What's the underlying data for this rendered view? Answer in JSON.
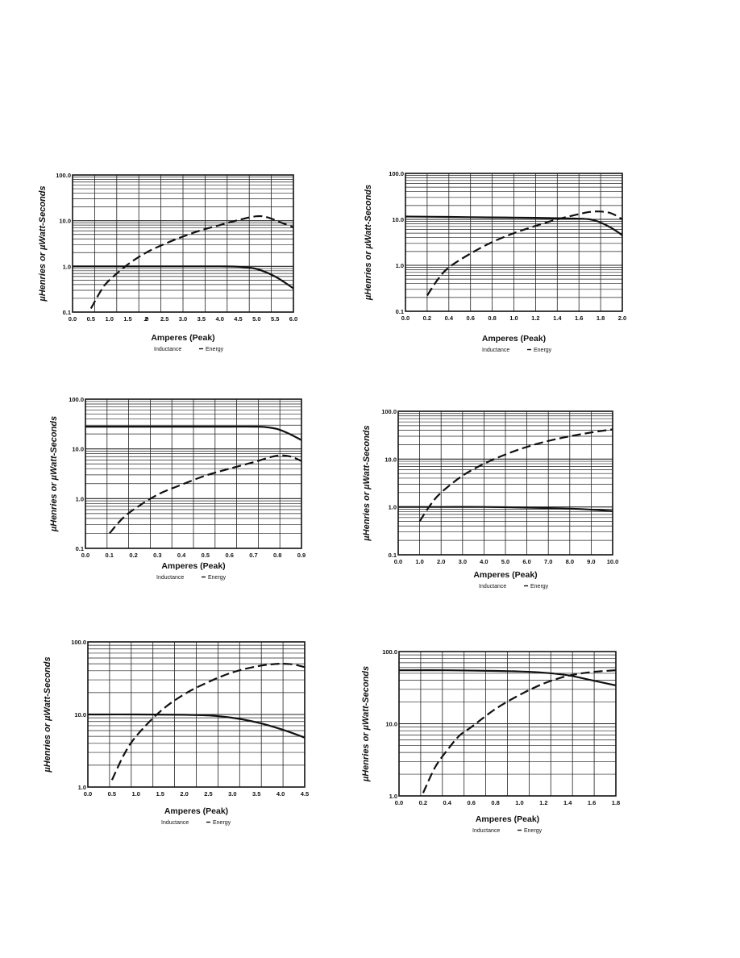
{
  "chart_data": [
    {
      "type": "line",
      "ylabel": "µHenries or  µWatt-Seconds",
      "xlabel": "Amperes (Peak)",
      "y_scale": "log",
      "ylim": [
        0.1,
        100
      ],
      "xlim": [
        0,
        6
      ],
      "x_ticks": [
        "0.0",
        "0.5",
        "1.0",
        "1.5",
        "2",
        ".0",
        "2.5",
        "3.0",
        "3.5",
        "4.0",
        "4.5",
        "5.0",
        "5.5",
        "6.0"
      ],
      "x_tick_values": [
        0,
        0.5,
        1.0,
        1.5,
        2.0,
        2.0,
        2.5,
        3.0,
        3.5,
        4.0,
        4.5,
        5.0,
        5.5,
        6.0
      ],
      "y_ticks": [
        "0.1",
        "1.0",
        "10.0",
        "100.0"
      ],
      "y_tick_values": [
        0.1,
        1,
        10,
        100
      ],
      "legend": [
        "Inductance",
        "Energy"
      ],
      "series": [
        {
          "name": "Inductance",
          "style": "solid",
          "x": [
            0,
            1.0,
            2.0,
            3.0,
            4.0,
            4.5,
            5.0,
            5.5,
            6.0
          ],
          "y": [
            1.0,
            1.0,
            1.0,
            1.0,
            1.0,
            0.98,
            0.88,
            0.6,
            0.33
          ]
        },
        {
          "name": "Energy",
          "style": "dashed",
          "x": [
            0.5,
            0.8,
            1.0,
            1.5,
            2.0,
            2.5,
            3.0,
            3.5,
            4.0,
            4.5,
            5.0,
            5.3,
            5.6,
            6.0
          ],
          "y": [
            0.12,
            0.32,
            0.5,
            1.1,
            2.0,
            3.1,
            4.5,
            6.2,
            8.0,
            10.3,
            12.5,
            11.8,
            9.5,
            7.2
          ]
        }
      ]
    },
    {
      "type": "line",
      "ylabel": "µHenries or  µWatt-Seconds",
      "xlabel": "Amperes (Peak)",
      "y_scale": "log",
      "ylim": [
        0.1,
        100
      ],
      "xlim": [
        0,
        2
      ],
      "x_ticks": [
        "0.0",
        "0.2",
        "0.4",
        "0.6",
        "0.8",
        "1.0",
        "1.2",
        "1.4",
        "1.6",
        "1.8",
        "2.0"
      ],
      "x_tick_values": [
        0,
        0.2,
        0.4,
        0.6,
        0.8,
        1.0,
        1.2,
        1.4,
        1.6,
        1.8,
        2.0
      ],
      "y_ticks": [
        "0.1",
        "1.0",
        "10.0",
        "100.0"
      ],
      "y_tick_values": [
        0.1,
        1,
        10,
        100
      ],
      "legend": [
        "Inductance",
        "Energy"
      ],
      "series": [
        {
          "name": "Inductance",
          "style": "solid",
          "x": [
            0,
            0.4,
            0.8,
            1.2,
            1.5,
            1.7,
            1.8,
            1.9,
            2.0
          ],
          "y": [
            11.5,
            11.3,
            11.0,
            10.8,
            10.5,
            10.0,
            8.5,
            6.5,
            4.5
          ]
        },
        {
          "name": "Energy",
          "style": "dashed",
          "x": [
            0.2,
            0.3,
            0.4,
            0.6,
            0.8,
            1.0,
            1.2,
            1.4,
            1.6,
            1.7,
            1.8,
            1.9,
            2.0
          ],
          "y": [
            0.22,
            0.5,
            0.9,
            1.8,
            3.2,
            5.0,
            7.2,
            10.0,
            13.0,
            14.5,
            14.8,
            13.5,
            10.0
          ]
        }
      ]
    },
    {
      "type": "line",
      "ylabel": "µHenries or  µWatt-Seconds",
      "xlabel": "Amperes (Peak)",
      "y_scale": "log",
      "ylim": [
        0.1,
        100
      ],
      "xlim": [
        0,
        0.9
      ],
      "x_ticks": [
        "0.0",
        "0.1",
        "0.2",
        "0.3",
        "0.4",
        "0.5",
        "0.6",
        "0.7",
        "0.8",
        "0.9"
      ],
      "x_tick_values": [
        0,
        0.1,
        0.2,
        0.3,
        0.4,
        0.5,
        0.6,
        0.7,
        0.8,
        0.9
      ],
      "y_ticks": [
        "0.1",
        "1.0",
        "10.0",
        "100.0"
      ],
      "y_tick_values": [
        0.1,
        1,
        10,
        100
      ],
      "legend": [
        "Inductance",
        "Energy"
      ],
      "series": [
        {
          "name": "Inductance",
          "style": "solid",
          "x": [
            0,
            0.2,
            0.4,
            0.6,
            0.7,
            0.75,
            0.8,
            0.85,
            0.9
          ],
          "y": [
            28,
            28,
            28,
            28,
            28,
            27.5,
            25,
            20,
            15
          ]
        },
        {
          "name": "Energy",
          "style": "dashed",
          "x": [
            0.1,
            0.15,
            0.2,
            0.3,
            0.4,
            0.5,
            0.6,
            0.7,
            0.78,
            0.82,
            0.86,
            0.9
          ],
          "y": [
            0.2,
            0.38,
            0.6,
            1.2,
            1.9,
            2.9,
            4.0,
            5.4,
            7.0,
            7.4,
            6.9,
            5.7
          ]
        }
      ]
    },
    {
      "type": "line",
      "ylabel": "µHenries or  µWatt-Seconds",
      "xlabel": "Amperes (Peak)",
      "y_scale": "log",
      "ylim": [
        0.1,
        100
      ],
      "xlim": [
        0,
        10
      ],
      "x_ticks": [
        "0.0",
        "1.0",
        "2.0",
        "3.0",
        "4.0",
        "5.0",
        "6.0",
        "7.0",
        "8.0",
        "9.0",
        "10.0"
      ],
      "x_tick_values": [
        0,
        1,
        2,
        3,
        4,
        5,
        6,
        7,
        8,
        9,
        10
      ],
      "y_ticks": [
        "0.1",
        "1.0",
        "10.0",
        "100.0"
      ],
      "y_tick_values": [
        0.1,
        1,
        10,
        100
      ],
      "legend": [
        "Inductance",
        "Energy"
      ],
      "series": [
        {
          "name": "Inductance",
          "style": "solid",
          "x": [
            0,
            2,
            4,
            6,
            8,
            9,
            10
          ],
          "y": [
            1.0,
            1.0,
            1.0,
            0.97,
            0.92,
            0.88,
            0.82
          ]
        },
        {
          "name": "Energy",
          "style": "dashed",
          "x": [
            1.0,
            1.5,
            2.0,
            3.0,
            4.0,
            5.0,
            6.0,
            7.0,
            8.0,
            9.0,
            10.0
          ],
          "y": [
            0.5,
            1.1,
            2.0,
            4.5,
            8.0,
            12.5,
            18.0,
            24.0,
            30.0,
            36.0,
            42.0
          ]
        }
      ]
    },
    {
      "type": "line",
      "ylabel": "µHenries or  µWatt-Seconds",
      "xlabel": "Amperes (Peak)",
      "y_scale": "log",
      "ylim": [
        1,
        100
      ],
      "xlim": [
        0,
        4.5
      ],
      "x_ticks": [
        "0.0",
        "0.5",
        "1.0",
        "1.5",
        "2.0",
        "2.5",
        "3.0",
        "3.5",
        "4.0",
        "4.5"
      ],
      "x_tick_values": [
        0,
        0.5,
        1.0,
        1.5,
        2.0,
        2.5,
        3.0,
        3.5,
        4.0,
        4.5
      ],
      "y_ticks": [
        "1.0",
        "10.0",
        "100.0"
      ],
      "y_tick_values": [
        1,
        10,
        100
      ],
      "legend": [
        "Inductance",
        "Energy"
      ],
      "series": [
        {
          "name": "Inductance",
          "style": "solid",
          "x": [
            0,
            1.0,
            2.0,
            2.5,
            3.0,
            3.5,
            4.0,
            4.5
          ],
          "y": [
            10.0,
            10.0,
            9.9,
            9.7,
            9.0,
            7.8,
            6.3,
            4.8
          ]
        },
        {
          "name": "Energy",
          "style": "dashed",
          "x": [
            0.5,
            0.75,
            1.0,
            1.5,
            2.0,
            2.5,
            3.0,
            3.5,
            3.8,
            4.0,
            4.25,
            4.5
          ],
          "y": [
            1.25,
            2.8,
            5.0,
            11.0,
            19.0,
            28.0,
            38.0,
            46.0,
            49.0,
            50.0,
            49.0,
            45.0
          ]
        }
      ]
    },
    {
      "type": "line",
      "ylabel": "µHenries or  µWatt-Seconds",
      "xlabel": "Amperes (Peak)",
      "y_scale": "log",
      "ylim": [
        1,
        100
      ],
      "xlim": [
        0,
        1.8
      ],
      "x_ticks": [
        "0.0",
        "0.2",
        "0.4",
        "0.6",
        "0.8",
        "1.0",
        "1.2",
        "1.4",
        "1.6",
        "1.8"
      ],
      "x_tick_values": [
        0,
        0.2,
        0.4,
        0.6,
        0.8,
        1.0,
        1.2,
        1.4,
        1.6,
        1.8
      ],
      "y_ticks": [
        "1.0",
        "10.0",
        "100.0"
      ],
      "y_tick_values": [
        1,
        10,
        100
      ],
      "legend": [
        "Inductance",
        "Energy"
      ],
      "series": [
        {
          "name": "Inductance",
          "style": "solid",
          "x": [
            0,
            0.4,
            0.8,
            1.0,
            1.2,
            1.4,
            1.6,
            1.8
          ],
          "y": [
            55,
            55,
            54,
            53,
            51,
            47,
            40,
            34
          ]
        },
        {
          "name": "Energy",
          "style": "dashed",
          "x": [
            0.2,
            0.3,
            0.4,
            0.5,
            0.6,
            0.8,
            1.0,
            1.2,
            1.4,
            1.6,
            1.8
          ],
          "y": [
            1.1,
            2.5,
            4.3,
            6.8,
            9.0,
            16.0,
            25.0,
            36.0,
            46.0,
            52.0,
            55.0
          ]
        }
      ]
    }
  ]
}
